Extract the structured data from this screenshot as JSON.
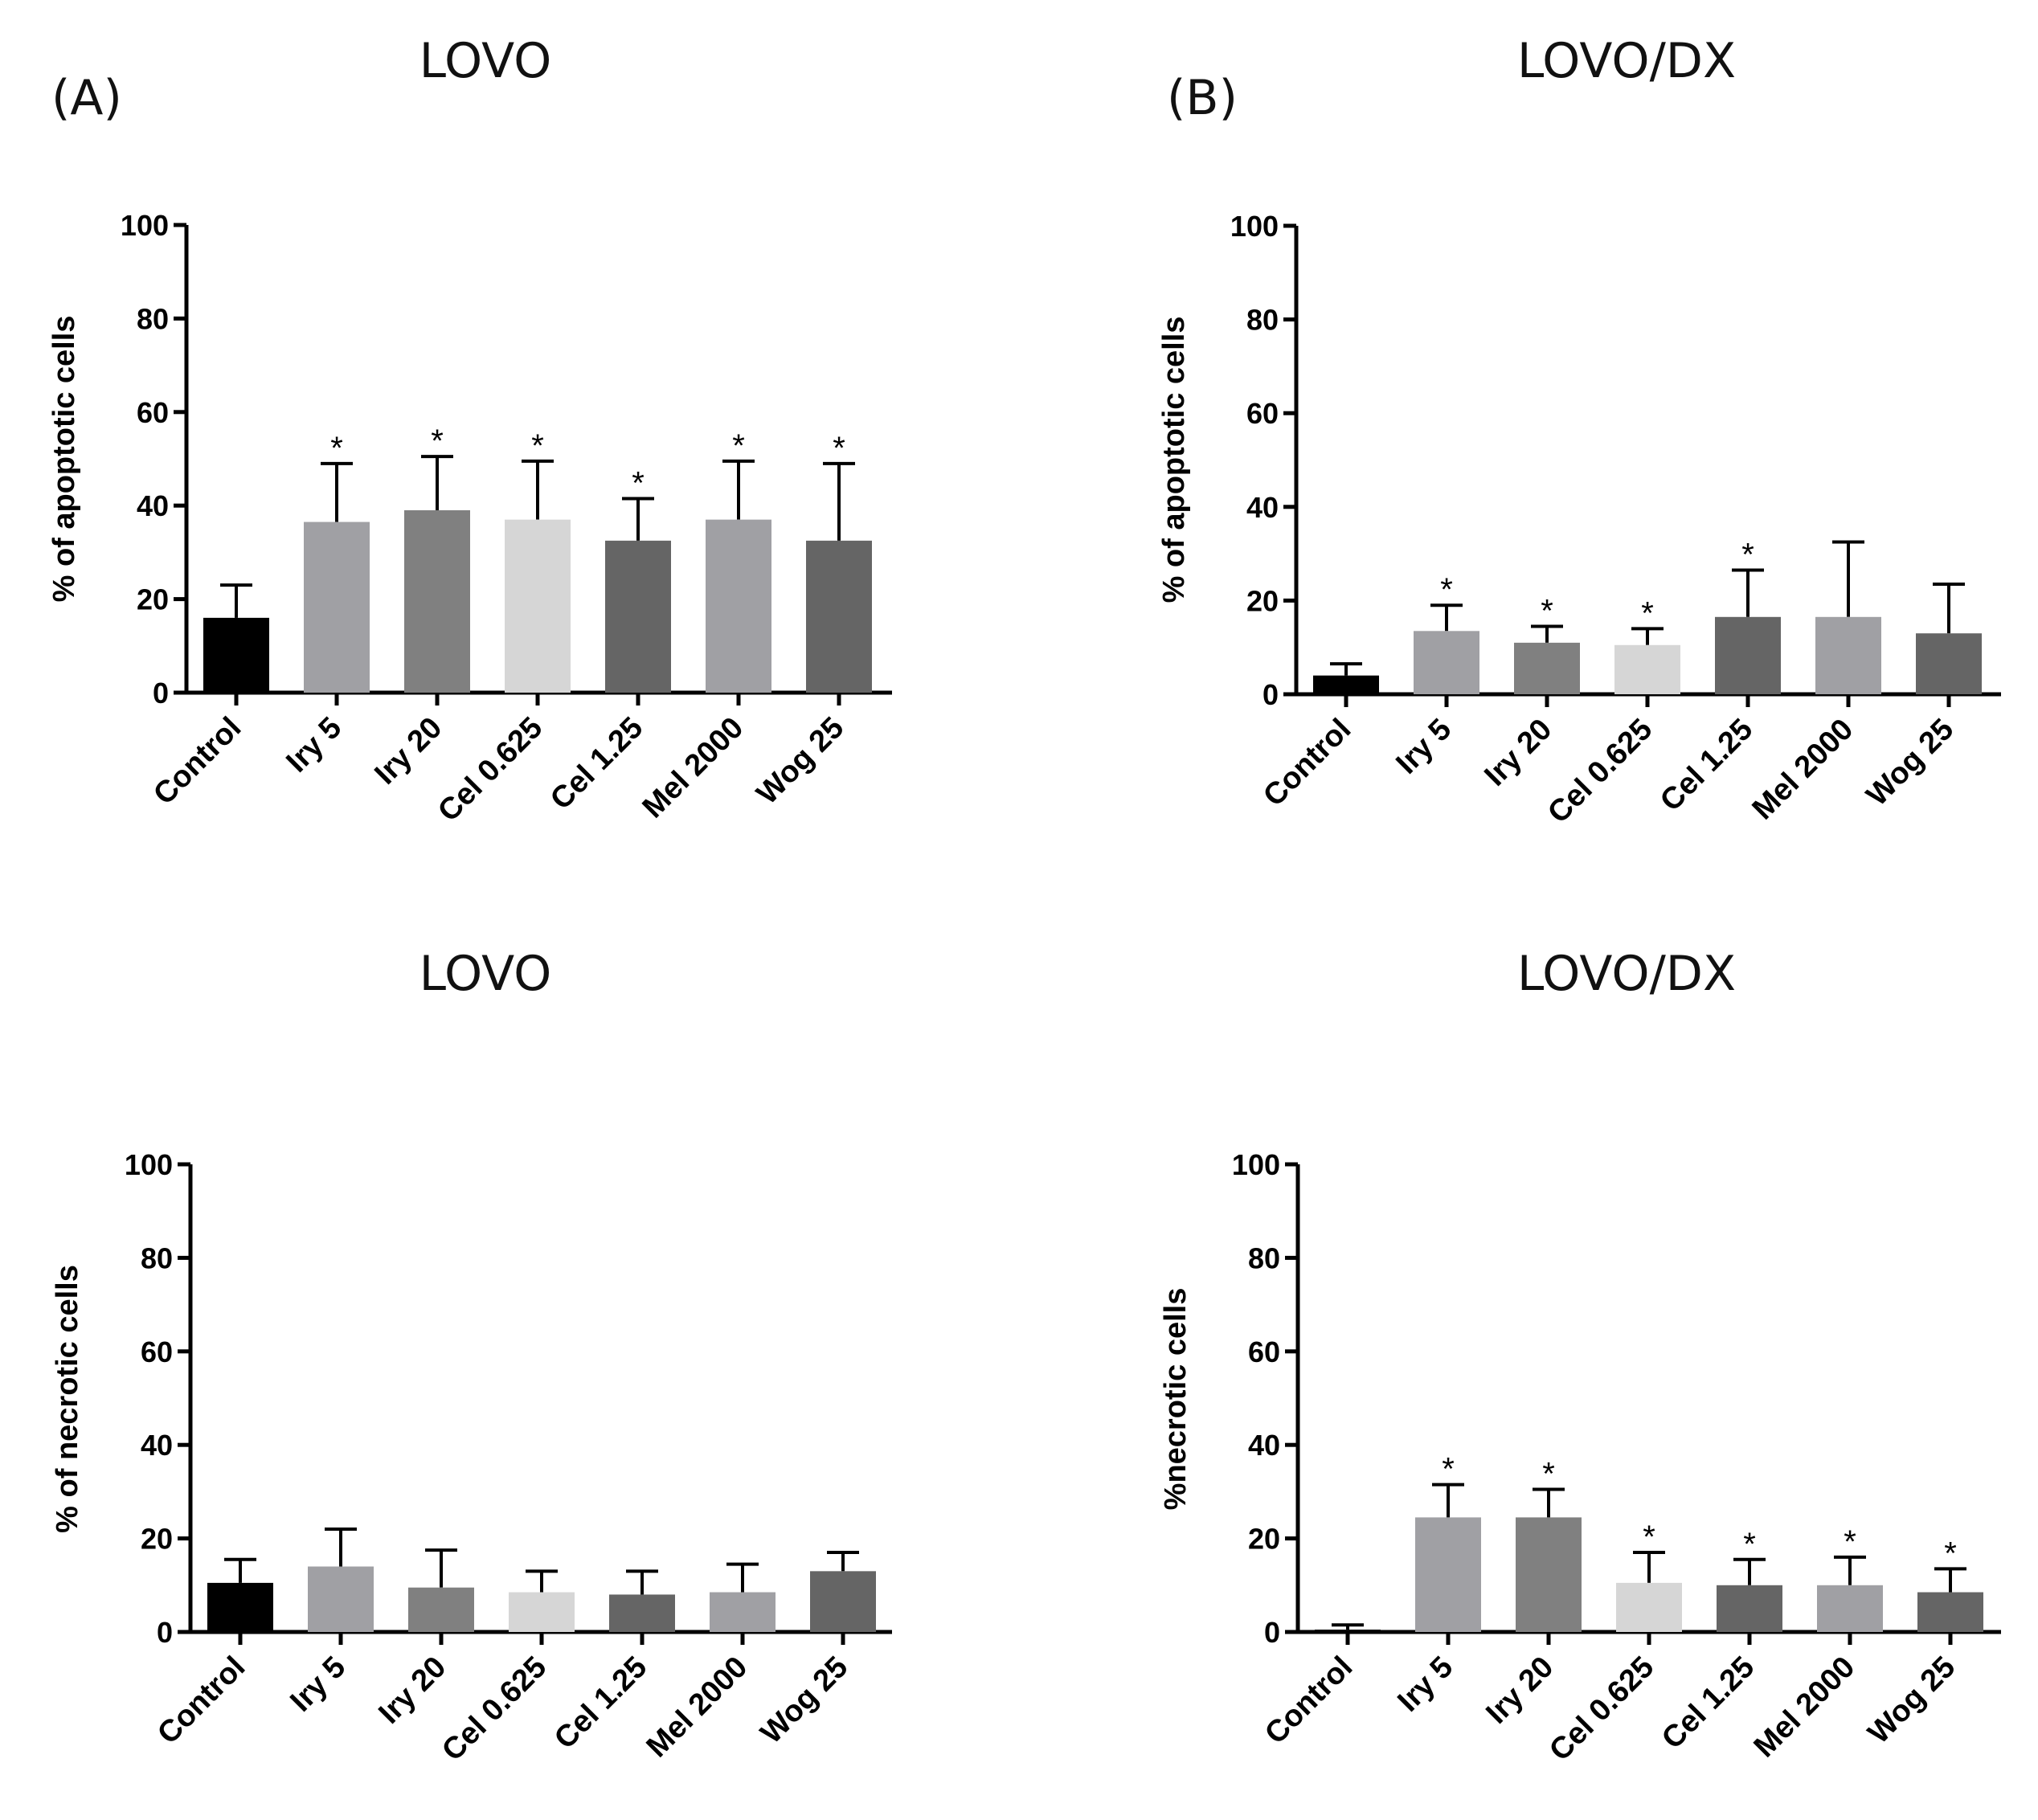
{
  "figure": {
    "letters": [
      "(A)",
      "(B)"
    ]
  },
  "chart_data": [
    {
      "type": "bar",
      "title": "LOVO",
      "panel_letter": "(A)",
      "ylabel": "% of apoptotic cells",
      "xlabel": "",
      "ylim": [
        0,
        100
      ],
      "yticks": [
        0,
        20,
        40,
        60,
        80,
        100
      ],
      "categories": [
        "Control",
        "Iry 5",
        "Iry 20",
        "Cel 0.625",
        "Cel 1.25",
        "Mel 2000",
        "Wog 25"
      ],
      "values": [
        16,
        36.5,
        39,
        37,
        32.5,
        37,
        32.5
      ],
      "errors": [
        7,
        12.5,
        11.5,
        12.5,
        9,
        12.5,
        16.5
      ],
      "significant": [
        false,
        true,
        true,
        true,
        true,
        true,
        true
      ],
      "colors": [
        "#000000",
        "#a0a0a4",
        "#808080",
        "#d6d6d6",
        "#656565",
        "#a0a0a4",
        "#656565"
      ]
    },
    {
      "type": "bar",
      "title": "LOVO/DX",
      "panel_letter": "(B)",
      "ylabel": "% of apoptotic cells",
      "xlabel": "",
      "ylim": [
        0,
        100
      ],
      "yticks": [
        0,
        20,
        40,
        60,
        80,
        100
      ],
      "categories": [
        "Control",
        "Iry 5",
        "Iry 20",
        "Cel 0.625",
        "Cel 1.25",
        "Mel 2000",
        "Wog 25"
      ],
      "values": [
        4,
        13.5,
        11,
        10.5,
        16.5,
        16.5,
        13
      ],
      "errors": [
        2.5,
        5.5,
        3.5,
        3.5,
        10,
        16,
        10.5
      ],
      "significant": [
        false,
        true,
        true,
        true,
        true,
        false,
        false
      ],
      "colors": [
        "#000000",
        "#a0a0a4",
        "#808080",
        "#d6d6d6",
        "#656565",
        "#a0a0a4",
        "#656565"
      ]
    },
    {
      "type": "bar",
      "title": "LOVO",
      "panel_letter": "",
      "ylabel": "% of necrotic cells",
      "xlabel": "",
      "ylim": [
        0,
        100
      ],
      "yticks": [
        0,
        20,
        40,
        60,
        80,
        100
      ],
      "categories": [
        "Control",
        "Iry 5",
        "Iry 20",
        "Cel 0.625",
        "Cel 1.25",
        "Mel 2000",
        "Wog 25"
      ],
      "values": [
        10.5,
        14,
        9.5,
        8.5,
        8,
        8.5,
        13
      ],
      "errors": [
        5,
        8,
        8,
        4.5,
        5,
        6,
        4
      ],
      "significant": [
        false,
        false,
        false,
        false,
        false,
        false,
        false
      ],
      "colors": [
        "#000000",
        "#a0a0a4",
        "#808080",
        "#d6d6d6",
        "#656565",
        "#a0a0a4",
        "#656565"
      ]
    },
    {
      "type": "bar",
      "title": "LOVO/DX",
      "panel_letter": "",
      "ylabel": "%necrotic cells",
      "xlabel": "",
      "ylim": [
        0,
        100
      ],
      "yticks": [
        0,
        20,
        40,
        60,
        80,
        100
      ],
      "categories": [
        "Control",
        "Iry 5",
        "Iry 20",
        "Cel 0.625",
        "Cel 1.25",
        "Mel 2000",
        "Wog 25"
      ],
      "values": [
        0.5,
        24.5,
        24.5,
        10.5,
        10,
        10,
        8.5
      ],
      "errors": [
        1,
        7,
        6,
        6.5,
        5.5,
        6,
        5
      ],
      "significant": [
        false,
        true,
        true,
        true,
        true,
        true,
        true
      ],
      "colors": [
        "#000000",
        "#a0a0a4",
        "#808080",
        "#d6d6d6",
        "#656565",
        "#a0a0a4",
        "#656565"
      ]
    }
  ]
}
